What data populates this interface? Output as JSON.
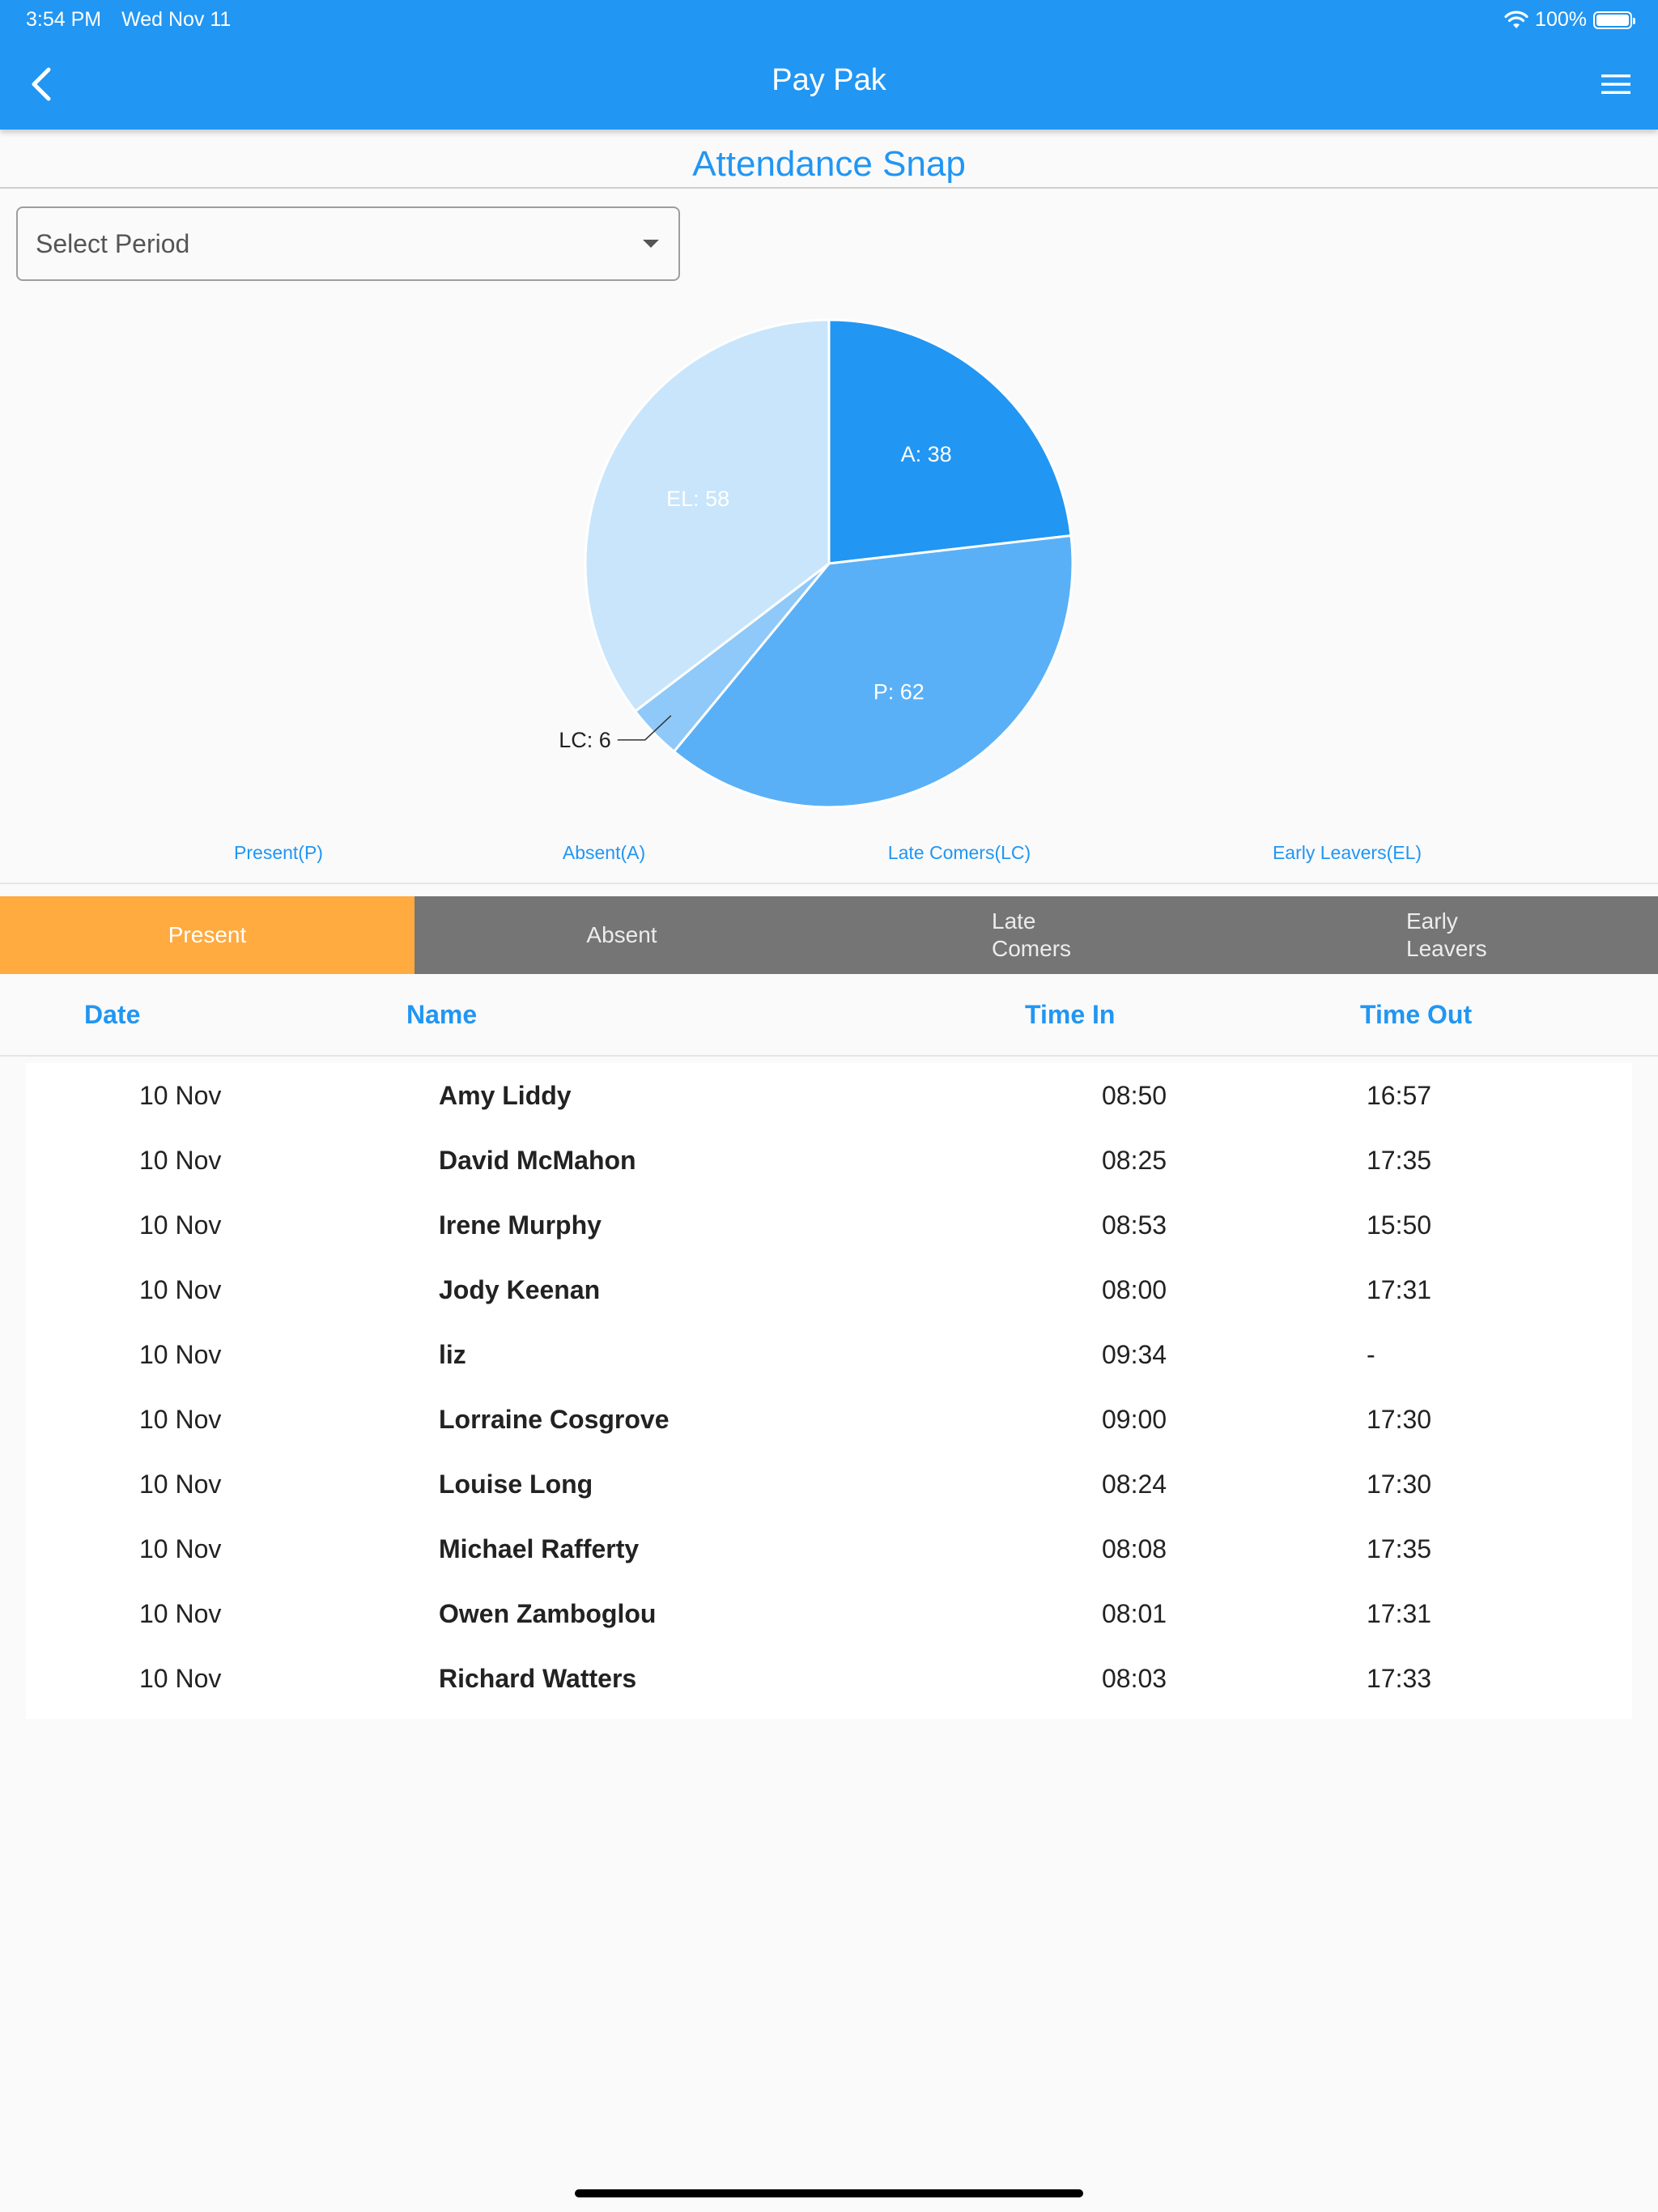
{
  "status_bar": {
    "time": "3:54 PM",
    "date": "Wed Nov 11",
    "battery": "100%",
    "battery_level": 1.0
  },
  "app_bar": {
    "title": "Pay Pak",
    "back_icon": "chevron-left-icon",
    "menu_icon": "hamburger-menu-icon"
  },
  "page": {
    "title": "Attendance Snap"
  },
  "period_select": {
    "placeholder": "Select Period",
    "icon": "caret-down-icon"
  },
  "colors": {
    "primary": "#2196f3",
    "accent": "#ffab40",
    "tab_inactive": "#757575"
  },
  "chart_data": {
    "type": "pie",
    "slices": [
      {
        "label": "A: 38",
        "value": 38,
        "color": "#2196f3"
      },
      {
        "label": "P: 62",
        "value": 62,
        "color": "#5ab0f6"
      },
      {
        "label": "LC: 6",
        "value": 6,
        "color": "#8ec9f9"
      },
      {
        "label": "EL: 58",
        "value": 58,
        "color": "#c8e5fb"
      }
    ],
    "legend": [
      "Present(P)",
      "Absent(A)",
      "Late Comers(LC)",
      "Early Leavers(EL)"
    ],
    "legend_position": "bottom"
  },
  "tabs": [
    {
      "label": "Present",
      "active": true
    },
    {
      "label": "Absent",
      "active": false
    },
    {
      "label": "Late Comers",
      "active": false
    },
    {
      "label": "Early Leavers",
      "active": false
    }
  ],
  "table": {
    "headers": [
      "Date",
      "Name",
      "Time In",
      "Time Out"
    ],
    "rows": [
      [
        "10 Nov",
        "Amy Liddy",
        "08:50",
        "16:57"
      ],
      [
        "10 Nov",
        "David McMahon",
        "08:25",
        "17:35"
      ],
      [
        "10 Nov",
        "Irene Murphy",
        "08:53",
        "15:50"
      ],
      [
        "10 Nov",
        "Jody Keenan",
        "08:00",
        "17:31"
      ],
      [
        "10 Nov",
        "liz",
        "09:34",
        "-"
      ],
      [
        "10 Nov",
        "Lorraine Cosgrove",
        "09:00",
        "17:30"
      ],
      [
        "10 Nov",
        "Louise Long",
        "08:24",
        "17:30"
      ],
      [
        "10 Nov",
        "Michael Rafferty",
        "08:08",
        "17:35"
      ],
      [
        "10 Nov",
        "Owen Zamboglou",
        "08:01",
        "17:31"
      ],
      [
        "10 Nov",
        "Richard Watters",
        "08:03",
        "17:33"
      ]
    ]
  }
}
